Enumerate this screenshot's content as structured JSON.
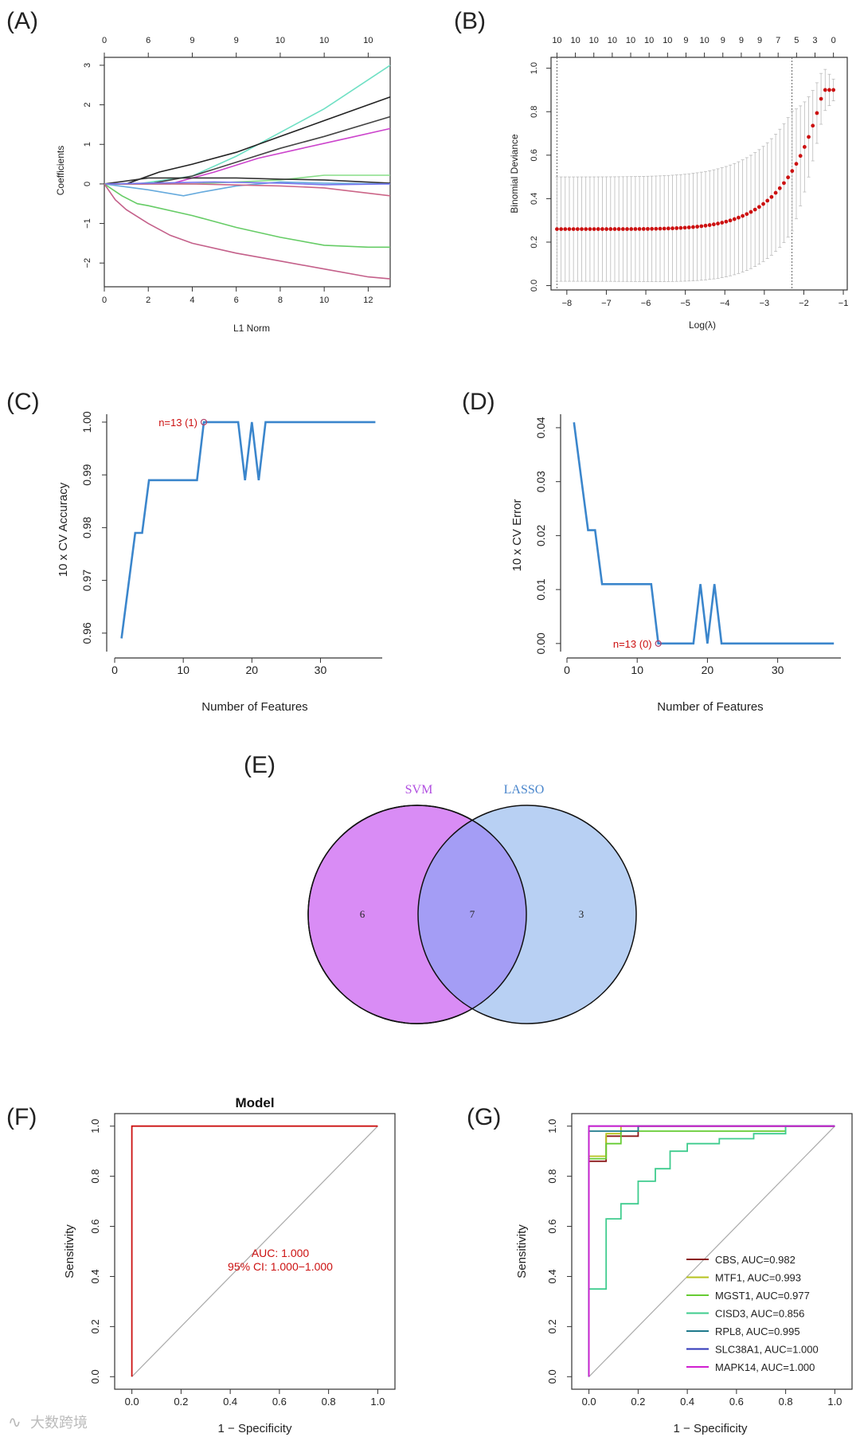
{
  "panel_labels": [
    "(A)",
    "(B)",
    "(C)",
    "(D)",
    "(E)",
    "(F)",
    "(G)"
  ],
  "watermark": "大数跨境",
  "chart_data": [
    {
      "id": "A",
      "type": "line",
      "xlabel": "L1 Norm",
      "ylabel": "Coefficients",
      "xlim": [
        0,
        13
      ],
      "ylim": [
        -2.6,
        3.2
      ],
      "x_ticks": [
        0,
        2,
        4,
        6,
        8,
        10,
        12
      ],
      "y_ticks": [
        -2,
        -1,
        0,
        1,
        2,
        3
      ],
      "y_tick_labels": [
        "−2",
        "−1",
        "0",
        "1",
        "2",
        "3"
      ],
      "top_axis": {
        "positions": [
          0,
          2,
          4,
          6,
          8,
          10,
          12
        ],
        "labels": [
          "0",
          "6",
          "9",
          "9",
          "10",
          "10",
          "10"
        ]
      },
      "series": [
        {
          "color": "#6fe0c4",
          "points": [
            [
              0,
              0
            ],
            [
              1.5,
              0
            ],
            [
              4,
              0.2
            ],
            [
              6,
              0.7
            ],
            [
              8,
              1.3
            ],
            [
              10,
              1.9
            ],
            [
              13,
              3.0
            ]
          ]
        },
        {
          "color": "#222222",
          "points": [
            [
              0,
              0
            ],
            [
              1,
              0
            ],
            [
              2.5,
              0.3
            ],
            [
              4,
              0.5
            ],
            [
              6,
              0.8
            ],
            [
              8,
              1.2
            ],
            [
              10,
              1.6
            ],
            [
              13,
              2.2
            ]
          ]
        },
        {
          "color": "#444444",
          "points": [
            [
              0,
              0
            ],
            [
              2,
              0
            ],
            [
              4,
              0.2
            ],
            [
              6,
              0.55
            ],
            [
              8,
              0.9
            ],
            [
              10,
              1.2
            ],
            [
              13,
              1.7
            ]
          ]
        },
        {
          "color": "#cc44cc",
          "points": [
            [
              0,
              0
            ],
            [
              3,
              0
            ],
            [
              5,
              0.3
            ],
            [
              7,
              0.65
            ],
            [
              9,
              0.9
            ],
            [
              11,
              1.15
            ],
            [
              13,
              1.4
            ]
          ]
        },
        {
          "color": "#88dd88",
          "points": [
            [
              0,
              0
            ],
            [
              4,
              0
            ],
            [
              6,
              0.05
            ],
            [
              8,
              0.1
            ],
            [
              10,
              0.22
            ],
            [
              13,
              0.22
            ]
          ]
        },
        {
          "color": "#333333",
          "points": [
            [
              0,
              0
            ],
            [
              2,
              0.15
            ],
            [
              4,
              0.15
            ],
            [
              6,
              0.15
            ],
            [
              8,
              0.12
            ],
            [
              10,
              0.1
            ],
            [
              13,
              0.02
            ]
          ]
        },
        {
          "color": "#66aadd",
          "points": [
            [
              0,
              0
            ],
            [
              2,
              -0.15
            ],
            [
              3.6,
              -0.3
            ],
            [
              4.5,
              -0.2
            ],
            [
              6,
              -0.05
            ],
            [
              8,
              0.05
            ],
            [
              10,
              0.02
            ],
            [
              13,
              0.0
            ]
          ]
        },
        {
          "color": "#cc6688",
          "points": [
            [
              0,
              0
            ],
            [
              4,
              0
            ],
            [
              8,
              -0.05
            ],
            [
              10,
              -0.1
            ],
            [
              13,
              -0.3
            ]
          ]
        },
        {
          "color": "#7777ee",
          "points": [
            [
              0,
              0
            ],
            [
              5,
              0.05
            ],
            [
              8,
              0.02
            ],
            [
              10,
              -0.02
            ],
            [
              13,
              0.0
            ]
          ]
        },
        {
          "color": "#66cc66",
          "points": [
            [
              0,
              0
            ],
            [
              0.8,
              -0.3
            ],
            [
              1.5,
              -0.5
            ],
            [
              2,
              -0.55
            ],
            [
              4,
              -0.8
            ],
            [
              6,
              -1.1
            ],
            [
              8,
              -1.35
            ],
            [
              10,
              -1.55
            ],
            [
              12,
              -1.6
            ],
            [
              13,
              -1.6
            ]
          ]
        },
        {
          "color": "#c4608a",
          "points": [
            [
              0,
              0
            ],
            [
              0.5,
              -0.4
            ],
            [
              1,
              -0.65
            ],
            [
              2,
              -1.0
            ],
            [
              3,
              -1.3
            ],
            [
              4,
              -1.5
            ],
            [
              6,
              -1.75
            ],
            [
              8,
              -1.95
            ],
            [
              10,
              -2.15
            ],
            [
              12,
              -2.35
            ],
            [
              13,
              -2.4
            ]
          ]
        }
      ]
    },
    {
      "id": "B",
      "type": "scatter",
      "xlabel": "Log(λ)",
      "ylabel": "Binomial Deviance",
      "xlim": [
        -8.4,
        -0.9
      ],
      "ylim": [
        -0.02,
        1.05
      ],
      "x_ticks": [
        -8,
        -7,
        -6,
        -5,
        -4,
        -3,
        -2,
        -1
      ],
      "x_tick_labels": [
        "−8",
        "−7",
        "−6",
        "−5",
        "−4",
        "−3",
        "−2",
        "−1"
      ],
      "y_ticks": [
        0.0,
        0.2,
        0.4,
        0.6,
        0.8,
        1.0
      ],
      "y_tick_labels": [
        "0.0",
        "0.2",
        "0.4",
        "0.6",
        "0.8",
        "1.0"
      ],
      "top_axis_labels": [
        "10",
        "10",
        "10",
        "10",
        "10",
        "10",
        "10",
        "9",
        "10",
        "9",
        "9",
        "9",
        "7",
        "5",
        "3",
        "0"
      ],
      "top_axis_range": [
        -8.25,
        -1.25
      ],
      "vlines": [
        -8.25,
        -2.3
      ],
      "deviance_curve": {
        "x_start": -8.25,
        "x_end": -1.25,
        "count": 68,
        "base": 0.26,
        "min_error_low": 0.02,
        "min_error_high": 0.5,
        "final": 0.9
      },
      "point_color": "#cc1111"
    },
    {
      "id": "C",
      "type": "line",
      "xlabel": "Number of Features",
      "ylabel": "10 x CV Accuracy",
      "xlim": [
        0,
        39
      ],
      "ylim": [
        0.9565,
        1.0015
      ],
      "x_ticks": [
        0,
        10,
        20,
        30
      ],
      "y_ticks": [
        0.96,
        0.97,
        0.98,
        0.99,
        1.0
      ],
      "y_tick_labels": [
        "0.96",
        "0.97",
        "0.98",
        "0.99",
        "1.00"
      ],
      "annotation": {
        "text": "n=13 (1)",
        "x": 13,
        "y": 1.0
      },
      "series": [
        {
          "color": "#3b86cc",
          "x": [
            1,
            2,
            3,
            4,
            5,
            6,
            7,
            8,
            9,
            10,
            11,
            12,
            13,
            14,
            15,
            16,
            17,
            18,
            19,
            20,
            21,
            22,
            23,
            24,
            25,
            26,
            27,
            28,
            29,
            30,
            31,
            32,
            33,
            34,
            35,
            36,
            37,
            38
          ],
          "y": [
            0.959,
            0.969,
            0.979,
            0.979,
            0.989,
            0.989,
            0.989,
            0.989,
            0.989,
            0.989,
            0.989,
            0.989,
            1.0,
            1.0,
            1.0,
            1.0,
            1.0,
            1.0,
            0.989,
            1.0,
            0.989,
            1.0,
            1.0,
            1.0,
            1.0,
            1.0,
            1.0,
            1.0,
            1.0,
            1.0,
            1.0,
            1.0,
            1.0,
            1.0,
            1.0,
            1.0,
            1.0,
            1.0
          ]
        }
      ]
    },
    {
      "id": "D",
      "type": "line",
      "xlabel": "Number of Features",
      "ylabel": "10 x CV Error",
      "xlim": [
        0,
        39
      ],
      "ylim": [
        -0.0015,
        0.0425
      ],
      "x_ticks": [
        0,
        10,
        20,
        30
      ],
      "y_ticks": [
        0.0,
        0.01,
        0.02,
        0.03,
        0.04
      ],
      "y_tick_labels": [
        "0.00",
        "0.01",
        "0.02",
        "0.03",
        "0.04"
      ],
      "annotation": {
        "text": "n=13 (0)",
        "x": 13,
        "y": 0.0
      },
      "series": [
        {
          "color": "#3b86cc",
          "x": [
            1,
            2,
            3,
            4,
            5,
            6,
            7,
            8,
            9,
            10,
            11,
            12,
            13,
            14,
            15,
            16,
            17,
            18,
            19,
            20,
            21,
            22,
            23,
            24,
            25,
            26,
            27,
            28,
            29,
            30,
            31,
            32,
            33,
            34,
            35,
            36,
            37,
            38
          ],
          "y": [
            0.041,
            0.031,
            0.021,
            0.021,
            0.011,
            0.011,
            0.011,
            0.011,
            0.011,
            0.011,
            0.011,
            0.011,
            0.0,
            0.0,
            0.0,
            0.0,
            0.0,
            0.0,
            0.011,
            0.0,
            0.011,
            0.0,
            0.0,
            0.0,
            0.0,
            0.0,
            0.0,
            0.0,
            0.0,
            0.0,
            0.0,
            0.0,
            0.0,
            0.0,
            0.0,
            0.0,
            0.0,
            0.0
          ]
        }
      ]
    },
    {
      "id": "E",
      "type": "venn",
      "sets": [
        {
          "name": "SVM",
          "only": 6,
          "color": "#d98cf5",
          "label_color": "#b14fe0"
        },
        {
          "name": "LASSO",
          "only": 3,
          "color": "#b8d0f3",
          "label_color": "#4a86cc"
        }
      ],
      "intersection": 7,
      "intersection_color": "#a49df5"
    },
    {
      "id": "F",
      "type": "line",
      "title": "Model",
      "xlabel": "1 − Specificity",
      "ylabel": "Sensitivity",
      "xlim": [
        -0.07,
        1.07
      ],
      "ylim": [
        -0.05,
        1.05
      ],
      "x_ticks": [
        0.0,
        0.2,
        0.4,
        0.6,
        0.8,
        1.0
      ],
      "x_tick_labels": [
        "0.0",
        "0.2",
        "0.4",
        "0.6",
        "0.8",
        "1.0"
      ],
      "y_ticks": [
        0.0,
        0.2,
        0.4,
        0.6,
        0.8,
        1.0
      ],
      "y_tick_labels": [
        "0.0",
        "0.2",
        "0.4",
        "0.6",
        "0.8",
        "1.0"
      ],
      "auc_text": "AUC: 1.000",
      "ci_text": "95% CI: 1.000−1.000",
      "series": [
        {
          "name": "Model",
          "color": "#cc1111",
          "points": [
            [
              0,
              0
            ],
            [
              0,
              1
            ],
            [
              1,
              1
            ]
          ]
        }
      ]
    },
    {
      "id": "G",
      "type": "line",
      "xlabel": "1 − Specificity",
      "ylabel": "Sensitivity",
      "xlim": [
        -0.07,
        1.07
      ],
      "ylim": [
        -0.05,
        1.05
      ],
      "x_ticks": [
        0.0,
        0.2,
        0.4,
        0.6,
        0.8,
        1.0
      ],
      "x_tick_labels": [
        "0.0",
        "0.2",
        "0.4",
        "0.6",
        "0.8",
        "1.0"
      ],
      "y_ticks": [
        0.0,
        0.2,
        0.4,
        0.6,
        0.8,
        1.0
      ],
      "y_tick_labels": [
        "0.0",
        "0.2",
        "0.4",
        "0.6",
        "0.8",
        "1.0"
      ],
      "series": [
        {
          "name": "CBS",
          "auc": "0.982",
          "legend": "CBS, AUC=0.982",
          "color": "#8b1a1a",
          "points": [
            [
              0,
              0
            ],
            [
              0,
              0.86
            ],
            [
              0.07,
              0.86
            ],
            [
              0.07,
              0.96
            ],
            [
              0.2,
              0.96
            ],
            [
              0.2,
              1
            ],
            [
              1,
              1
            ]
          ]
        },
        {
          "name": "MTF1",
          "auc": "0.993",
          "legend": "MTF1, AUC=0.993",
          "color": "#b5c21c",
          "points": [
            [
              0,
              0
            ],
            [
              0,
              0.88
            ],
            [
              0.07,
              0.88
            ],
            [
              0.07,
              0.97
            ],
            [
              0.13,
              0.97
            ],
            [
              0.13,
              1
            ],
            [
              1,
              1
            ]
          ]
        },
        {
          "name": "MGST1",
          "auc": "0.977",
          "legend": "MGST1, AUC=0.977",
          "color": "#66cc33",
          "points": [
            [
              0,
              0
            ],
            [
              0,
              0.87
            ],
            [
              0.07,
              0.87
            ],
            [
              0.07,
              0.93
            ],
            [
              0.13,
              0.93
            ],
            [
              0.13,
              0.98
            ],
            [
              0.8,
              0.98
            ],
            [
              0.8,
              1
            ],
            [
              1,
              1
            ]
          ]
        },
        {
          "name": "CISD3",
          "auc": "0.856",
          "legend": "CISD3, AUC=0.856",
          "color": "#3fcc8e",
          "points": [
            [
              0,
              0
            ],
            [
              0,
              0.35
            ],
            [
              0.07,
              0.35
            ],
            [
              0.07,
              0.63
            ],
            [
              0.13,
              0.63
            ],
            [
              0.13,
              0.69
            ],
            [
              0.2,
              0.69
            ],
            [
              0.2,
              0.78
            ],
            [
              0.27,
              0.78
            ],
            [
              0.27,
              0.83
            ],
            [
              0.33,
              0.83
            ],
            [
              0.33,
              0.9
            ],
            [
              0.4,
              0.9
            ],
            [
              0.4,
              0.93
            ],
            [
              0.53,
              0.93
            ],
            [
              0.53,
              0.95
            ],
            [
              0.67,
              0.95
            ],
            [
              0.67,
              0.97
            ],
            [
              0.8,
              0.97
            ],
            [
              0.8,
              1
            ],
            [
              1,
              1
            ]
          ]
        },
        {
          "name": "RPL8",
          "auc": "0.995",
          "legend": "RPL8, AUC=0.995",
          "color": "#1f7a8c",
          "points": [
            [
              0,
              0
            ],
            [
              0,
              0.98
            ],
            [
              0.2,
              0.98
            ],
            [
              0.2,
              1
            ],
            [
              1,
              1
            ]
          ]
        },
        {
          "name": "SLC38A1",
          "auc": "1.000",
          "legend": "SLC38A1, AUC=1.000",
          "color": "#2e35b8",
          "points": [
            [
              0,
              0
            ],
            [
              0,
              1
            ],
            [
              1,
              1
            ]
          ]
        },
        {
          "name": "MAPK14",
          "auc": "1.000",
          "legend": "MAPK14, AUC=1.000",
          "color": "#d01fd0",
          "points": [
            [
              0,
              0
            ],
            [
              0,
              1
            ],
            [
              1,
              1
            ]
          ]
        }
      ]
    }
  ]
}
